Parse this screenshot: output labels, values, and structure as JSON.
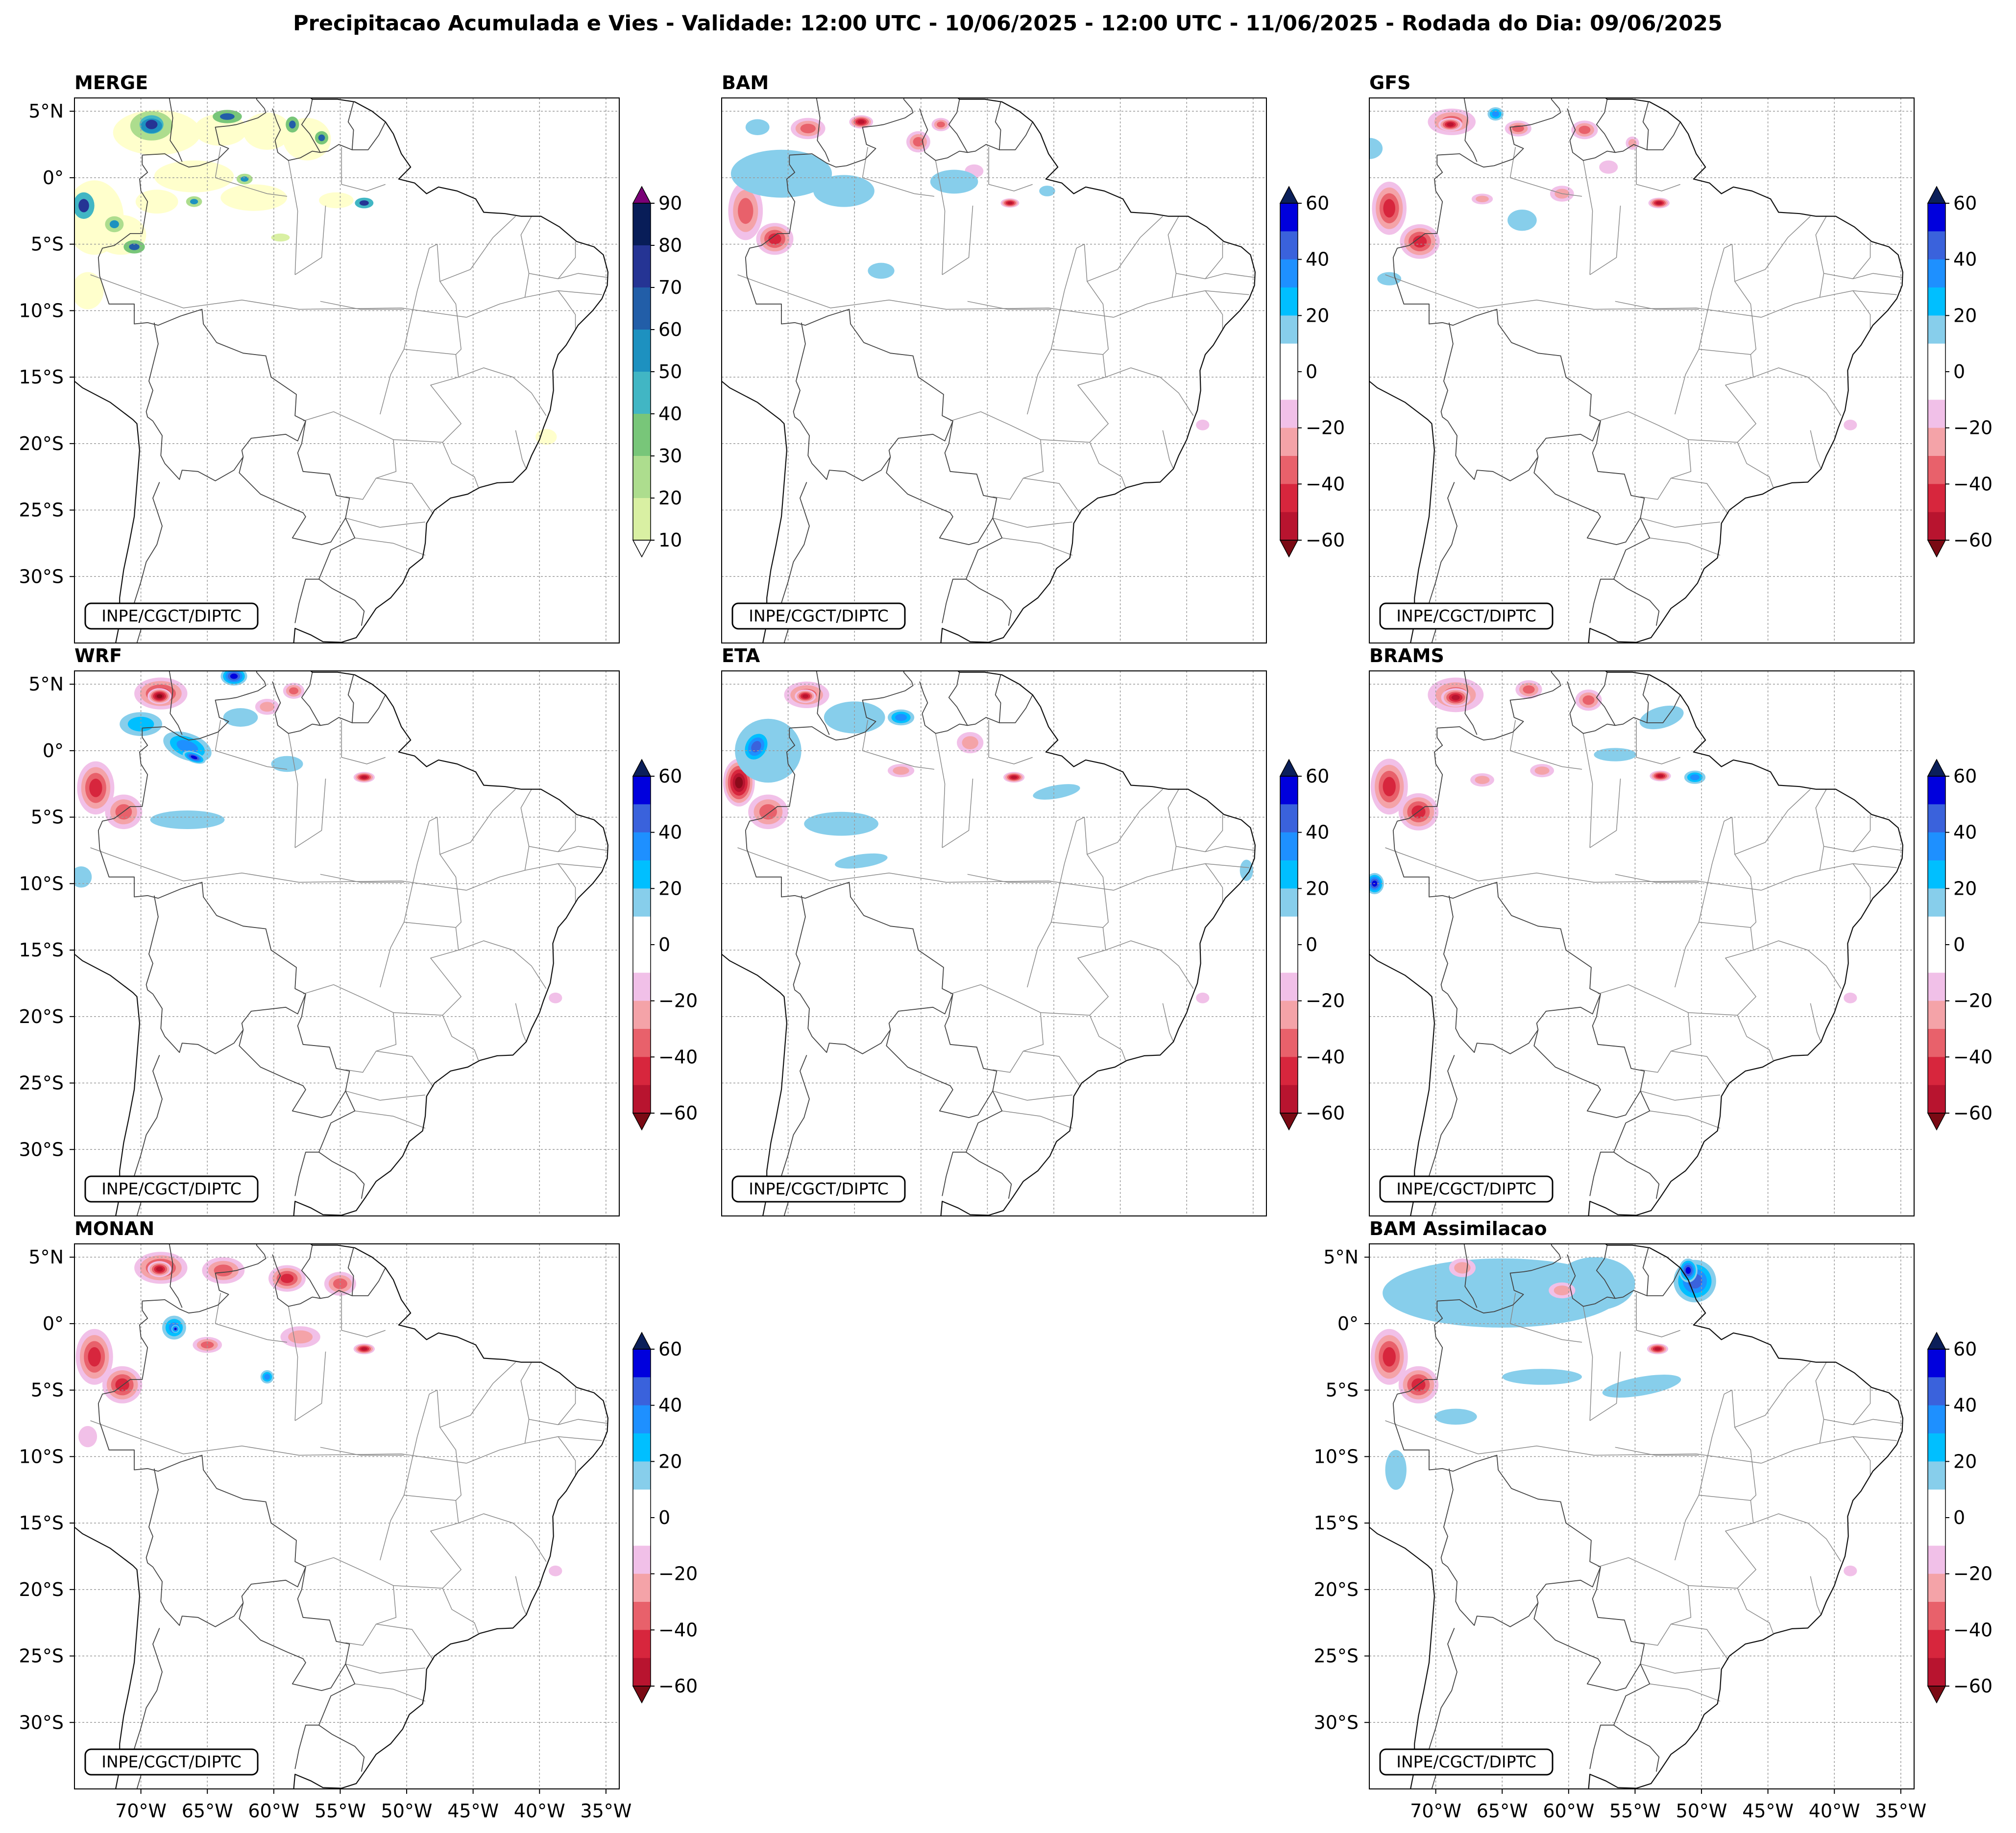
{
  "figure": {
    "title": "Precipitacao Acumulada e Vies - Validade: 12:00 UTC - 10/06/2025 - 12:00 UTC - 11/06/2025 - Rodada do Dia: 09/06/2025"
  },
  "axes": {
    "lat_labels": [
      "5°N",
      "0°",
      "5°S",
      "10°S",
      "15°S",
      "20°S",
      "25°S",
      "30°S"
    ],
    "lon_labels": [
      "70°W",
      "65°W",
      "60°W",
      "55°W",
      "50°W",
      "45°W",
      "40°W",
      "35°W"
    ]
  },
  "credit": "INPE/CGCT/DIPTC",
  "colorbars": {
    "precip": {
      "ticks": [
        "90",
        "80",
        "70",
        "60",
        "50",
        "40",
        "30",
        "20",
        "10"
      ],
      "colors": [
        "#ffffcc",
        "#d9f0a3",
        "#addd8e",
        "#78c679",
        "#41b6c4",
        "#1d91c0",
        "#225ea8",
        "#253494",
        "#081d58"
      ],
      "over_color": "#7a0177",
      "under_color": "#ffffff"
    },
    "bias": {
      "ticks": [
        "60",
        "40",
        "20",
        "0",
        "−20",
        "−40",
        "−60"
      ],
      "colors_top_to_bottom": [
        "#0000dd",
        "#3a62dc",
        "#1e90ff",
        "#00bfff",
        "#87ceeb",
        "#ffffff",
        "#ffffff",
        "#f1c0e8",
        "#f4a3a8",
        "#e8616b",
        "#d7263d",
        "#b8142f",
        "#8b0a1a"
      ],
      "over_color": "#0b1f5a",
      "under_color": "#7a0a14"
    }
  },
  "panels": [
    {
      "name": "MERGE",
      "kind": "precip"
    },
    {
      "name": "BAM",
      "kind": "bias"
    },
    {
      "name": "GFS",
      "kind": "bias"
    },
    {
      "name": "WRF",
      "kind": "bias"
    },
    {
      "name": "ETA",
      "kind": "bias"
    },
    {
      "name": "BRAMS",
      "kind": "bias"
    },
    {
      "name": "MONAN",
      "kind": "bias"
    },
    {
      "name": "BAM Assimilacao",
      "kind": "bias"
    }
  ]
}
